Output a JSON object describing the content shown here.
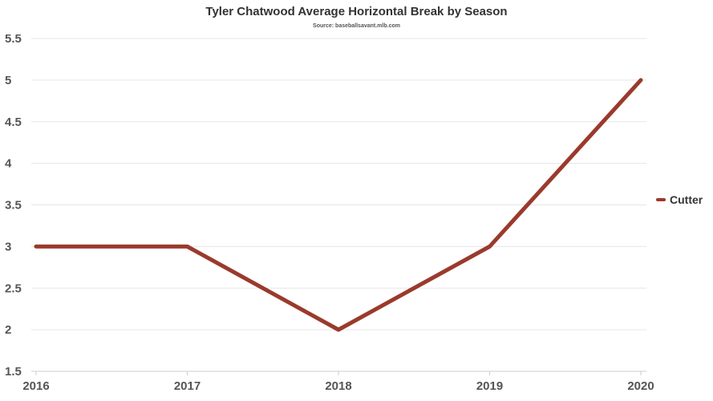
{
  "chart_data": {
    "type": "line",
    "title": "Tyler Chatwood Average Horizontal Break by Season",
    "subtitle": "Source: baseballsavant.mlb.com",
    "xlabel": "",
    "ylabel": "",
    "categories": [
      "2016",
      "2017",
      "2018",
      "2019",
      "2020"
    ],
    "series": [
      {
        "name": "Cutter",
        "values": [
          3,
          3,
          2,
          3,
          5
        ],
        "color": "#9a3a2c"
      }
    ],
    "ylim": [
      1.5,
      5.5
    ],
    "yticks": [
      1.5,
      2,
      2.5,
      3,
      3.5,
      4,
      4.5,
      5,
      5.5
    ],
    "ytick_labels": [
      "1.5",
      "2",
      "2.5",
      "3",
      "3.5",
      "4",
      "4.5",
      "5",
      "5.5"
    ],
    "grid": true,
    "legend_position": "right"
  }
}
